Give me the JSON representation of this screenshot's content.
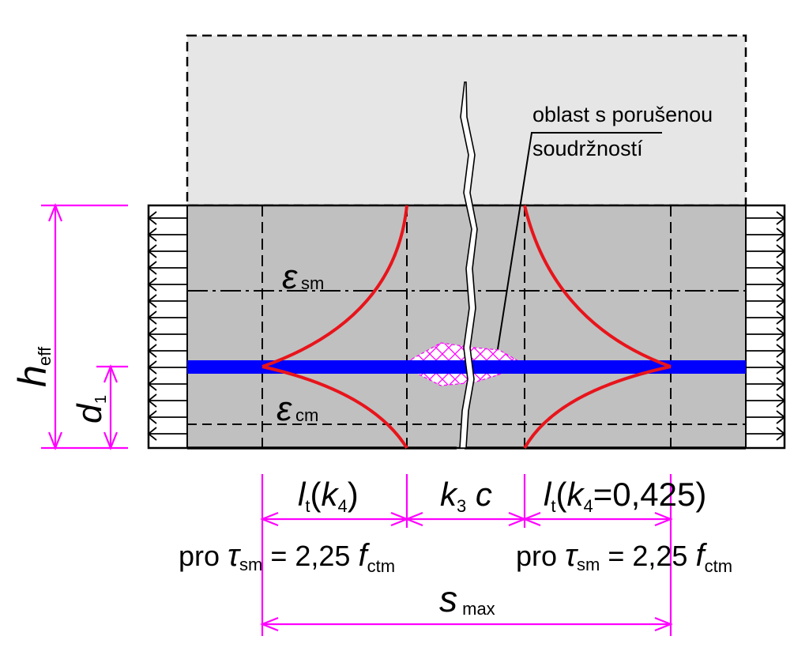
{
  "colors": {
    "dimension": "#ff00ff",
    "reinforcement": "#0000ff",
    "strain_curve": "#e8141b",
    "concrete_cracked": "#c0c0c0",
    "concrete_above": "#e6e6e6",
    "outline": "#000000"
  },
  "labels": {
    "bond_zone_line1": "oblast s porušenou",
    "bond_zone_line2": "soudržností",
    "eps_sm_symbol": "ε",
    "eps_sm_sub": "sm",
    "eps_cm_symbol": "ε",
    "eps_cm_sub": "cm",
    "heff_main": "h",
    "heff_sub": "eff",
    "d1_main": "d",
    "d1_sub": "1",
    "lt_left_main": "l",
    "lt_left_sub": "t",
    "lt_left_paren_open": "(",
    "lt_left_k": "k",
    "lt_left_k_sub": "4",
    "lt_left_paren_close": ")",
    "k3c_k": "k",
    "k3c_sub": "3",
    "k3c_c": " c",
    "lt_right_main": "l",
    "lt_right_sub": "t",
    "lt_right_paren_open": "(",
    "lt_right_k": "k",
    "lt_right_k_sub": "4",
    "lt_right_value": "=0,425)",
    "pro_left_word": "pro ",
    "pro_left_tau": "τ",
    "pro_left_tau_sub": "sm",
    "pro_left_eq": " = 2,25 ",
    "pro_left_f": "f",
    "pro_left_f_sub": "ctm",
    "pro_right_word": "pro ",
    "pro_right_tau": "τ",
    "pro_right_tau_sub": "sm",
    "pro_right_eq": "  = 2,25 ",
    "pro_right_f": "f",
    "pro_right_f_sub": "ctm",
    "smax_main": "s",
    "smax_sub": " max"
  }
}
